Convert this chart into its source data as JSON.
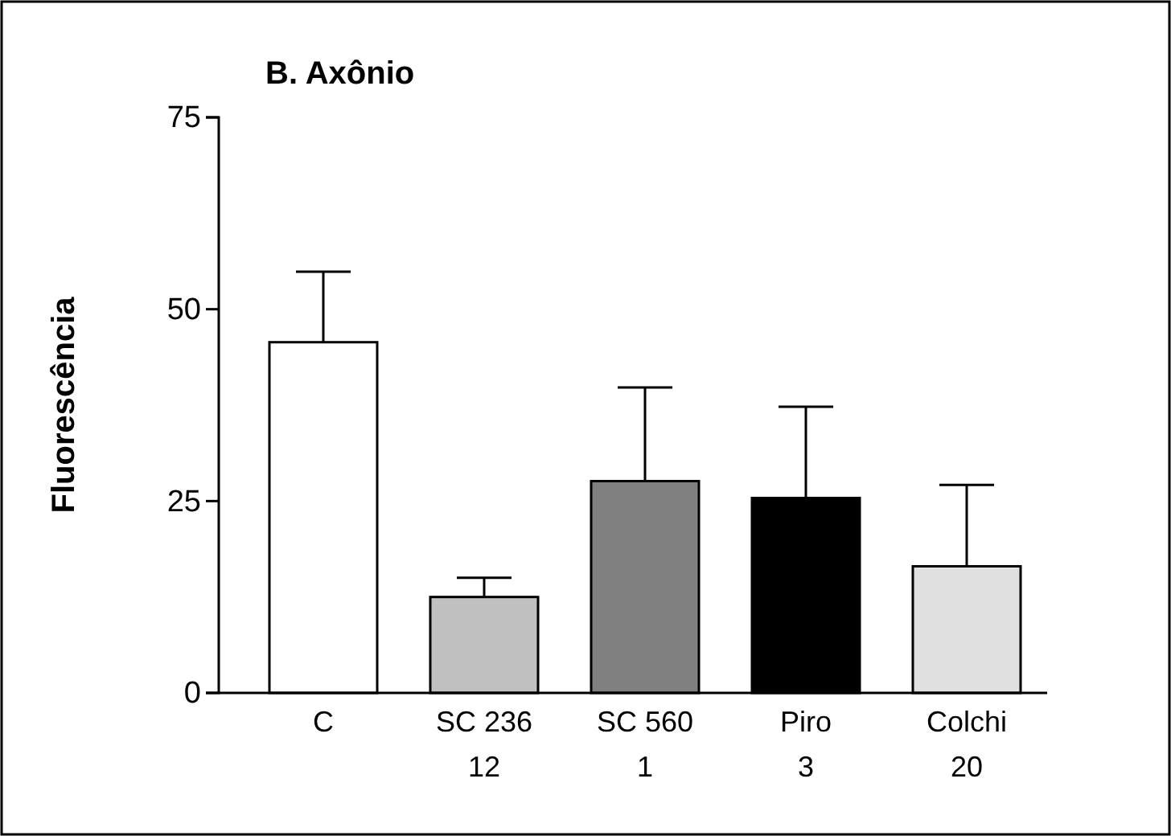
{
  "chart_data": {
    "type": "bar",
    "title": "B. Axônio",
    "ylabel": "Fluorescência",
    "categories": [
      "C",
      "SC 236\n12",
      "SC 560\n1",
      "Piro\n3",
      "Colchi\n20"
    ],
    "values": [
      45.7,
      12.5,
      27.6,
      25.4,
      16.5
    ],
    "errors": [
      [
        45.7,
        54.9
      ],
      [
        12.5,
        15.0
      ],
      [
        27.6,
        39.8
      ],
      [
        25.4,
        37.3
      ],
      [
        16.5,
        27.1
      ]
    ],
    "colors": [
      "#ffffff",
      "#c0c0c0",
      "#808080",
      "#000000",
      "#e0e0e0"
    ],
    "ylim": [
      0,
      75
    ],
    "yticks": [
      0,
      25,
      50,
      75
    ],
    "grid": false
  }
}
